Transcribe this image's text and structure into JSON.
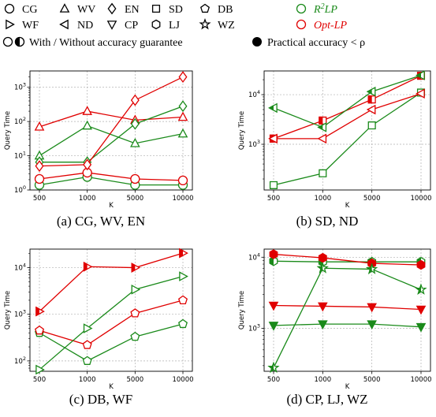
{
  "legend": {
    "items": [
      {
        "marker": "circle",
        "label": "CG"
      },
      {
        "marker": "triangle-up",
        "label": "WV"
      },
      {
        "marker": "diamond",
        "label": "EN"
      },
      {
        "marker": "square",
        "label": "SD"
      },
      {
        "marker": "pentagon",
        "label": "DB"
      },
      {
        "marker": "triangle-right",
        "label": "WF"
      },
      {
        "marker": "triangle-left",
        "label": "ND"
      },
      {
        "marker": "triangle-down",
        "label": "CP"
      },
      {
        "marker": "hexagon",
        "label": "LJ"
      },
      {
        "marker": "star",
        "label": "WZ"
      }
    ],
    "methods": [
      {
        "label_prefix": "R",
        "label_sup": "2",
        "label_suffix": "LP",
        "color": "#1a8a1a"
      },
      {
        "label_prefix": "Opt-LP",
        "label_sup": "",
        "label_suffix": "",
        "color": "#e00000"
      }
    ],
    "guarantee_label": "With / Without accuracy guarantee",
    "practical_label": "Practical accuracy < ρ"
  },
  "colors": {
    "green": "#1a8a1a",
    "red": "#e00000"
  },
  "chart_data": [
    {
      "type": "line",
      "caption": "(a) CG, WV, EN",
      "xlabel": "K",
      "ylabel": "Query Time",
      "categories": [
        "500",
        "1000",
        "5000",
        "10000"
      ],
      "yscale": "log",
      "ylim": [
        1,
        3000
      ],
      "yticks": [
        {
          "v": 1,
          "b": "10",
          "e": "0"
        },
        {
          "v": 10,
          "b": "10",
          "e": "1"
        },
        {
          "v": 100,
          "b": "10",
          "e": "2"
        },
        {
          "v": 1000,
          "b": "10",
          "e": "3"
        }
      ],
      "grid": true,
      "series": [
        {
          "dataset": "CG",
          "method": "R2LP",
          "color": "#1a8a1a",
          "marker": "circle",
          "fill": "none",
          "values": [
            1.4,
            2.4,
            1.4,
            1.4
          ]
        },
        {
          "dataset": "CG",
          "method": "Opt-LP",
          "color": "#e00000",
          "marker": "circle",
          "fill": "none",
          "values": [
            2.1,
            3.2,
            2.1,
            1.9
          ]
        },
        {
          "dataset": "WV",
          "method": "R2LP",
          "color": "#1a8a1a",
          "marker": "triangle-up",
          "fill": "none",
          "values": [
            10,
            75,
            23,
            44
          ]
        },
        {
          "dataset": "WV",
          "method": "Opt-LP",
          "color": "#e00000",
          "marker": "triangle-up",
          "fill": "none",
          "values": [
            70,
            200,
            110,
            135
          ]
        },
        {
          "dataset": "EN",
          "method": "R2LP",
          "color": "#1a8a1a",
          "marker": "diamond",
          "fill": "none",
          "values": [
            6.5,
            6.5,
            85,
            280
          ]
        },
        {
          "dataset": "EN",
          "method": "Opt-LP",
          "color": "#e00000",
          "marker": "diamond",
          "fill": "none",
          "values": [
            5,
            5.5,
            420,
            2000
          ]
        }
      ]
    },
    {
      "type": "line",
      "caption": "(b) SD, ND",
      "xlabel": "K",
      "ylabel": "Query Time",
      "categories": [
        "500",
        "1000",
        "5000",
        "10000"
      ],
      "yscale": "log",
      "ylim": [
        120,
        30000
      ],
      "yticks": [
        {
          "v": 1000,
          "b": "10",
          "e": "3"
        },
        {
          "v": 10000,
          "b": "10",
          "e": "4"
        }
      ],
      "grid": true,
      "series": [
        {
          "dataset": "SD",
          "method": "R2LP",
          "color": "#1a8a1a",
          "marker": "square",
          "fill": "none",
          "values": [
            150,
            260,
            2400,
            11000
          ]
        },
        {
          "dataset": "SD",
          "method": "Opt-LP",
          "color": "#e00000",
          "marker": "square",
          "fill": "half",
          "values": [
            1300,
            3000,
            8000,
            24000
          ]
        },
        {
          "dataset": "ND",
          "method": "R2LP",
          "color": "#1a8a1a",
          "marker": "triangle-left",
          "fill": "half",
          "values": [
            5400,
            2200,
            11500,
            24500
          ]
        },
        {
          "dataset": "ND",
          "method": "Opt-LP",
          "color": "#e00000",
          "marker": "triangle-left",
          "fill": "none",
          "values": [
            1300,
            1300,
            5000,
            10500
          ]
        }
      ]
    },
    {
      "type": "line",
      "caption": "(c) DB, WF",
      "xlabel": "K",
      "ylabel": "Query Time",
      "categories": [
        "500",
        "1000",
        "5000",
        "10000"
      ],
      "yscale": "log",
      "ylim": [
        60,
        25000
      ],
      "yticks": [
        {
          "v": 100,
          "b": "10",
          "e": "2"
        },
        {
          "v": 1000,
          "b": "10",
          "e": "3"
        },
        {
          "v": 10000,
          "b": "10",
          "e": "4"
        }
      ],
      "grid": true,
      "series": [
        {
          "dataset": "DB",
          "method": "R2LP",
          "color": "#1a8a1a",
          "marker": "pentagon",
          "fill": "none",
          "values": [
            400,
            100,
            330,
            620
          ]
        },
        {
          "dataset": "DB",
          "method": "Opt-LP",
          "color": "#e00000",
          "marker": "pentagon",
          "fill": "none",
          "values": [
            450,
            220,
            1050,
            2000
          ]
        },
        {
          "dataset": "WF",
          "method": "R2LP",
          "color": "#1a8a1a",
          "marker": "triangle-right",
          "fill": "none",
          "values": [
            65,
            500,
            3400,
            6500
          ]
        },
        {
          "dataset": "WF",
          "method": "Opt-LP",
          "color": "#e00000",
          "marker": "triangle-right",
          "fill": "half",
          "values": [
            1150,
            10500,
            10000,
            20500
          ]
        }
      ]
    },
    {
      "type": "line",
      "caption": "(d) CP, LJ, WZ",
      "xlabel": "K",
      "ylabel": "Query Time",
      "categories": [
        "500",
        "1000",
        "5000",
        "10000"
      ],
      "yscale": "log",
      "ylim": [
        250,
        13000
      ],
      "yticks": [
        {
          "v": 1000,
          "b": "10",
          "e": "3"
        },
        {
          "v": 10000,
          "b": "10",
          "e": "4"
        }
      ],
      "grid": true,
      "series": [
        {
          "dataset": "CP",
          "method": "R2LP",
          "color": "#1a8a1a",
          "marker": "triangle-down",
          "fill": "full",
          "values": [
            1100,
            1150,
            1150,
            1050
          ]
        },
        {
          "dataset": "CP",
          "method": "Opt-LP",
          "color": "#e00000",
          "marker": "triangle-down",
          "fill": "full",
          "values": [
            2100,
            2050,
            2000,
            1850
          ]
        },
        {
          "dataset": "LJ",
          "method": "R2LP",
          "color": "#1a8a1a",
          "marker": "hexagon",
          "fill": "half",
          "values": [
            8800,
            8600,
            8600,
            8600
          ]
        },
        {
          "dataset": "LJ",
          "method": "Opt-LP",
          "color": "#e00000",
          "marker": "hexagon",
          "fill": "full",
          "values": [
            11000,
            9800,
            8200,
            7800
          ]
        },
        {
          "dataset": "WZ",
          "method": "R2LP",
          "color": "#1a8a1a",
          "marker": "star",
          "fill": "half",
          "values": [
            280,
            7000,
            6800,
            3500
          ]
        }
      ]
    }
  ]
}
